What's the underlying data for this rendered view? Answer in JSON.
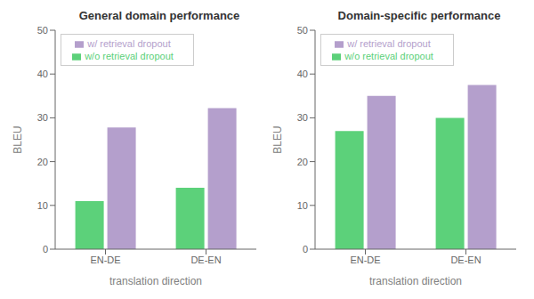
{
  "chart_data": [
    {
      "type": "bar",
      "title": "General domain performance",
      "categories": [
        "EN-DE",
        "DE-EN"
      ],
      "x_label": "translation direction",
      "y_label": "BLEU",
      "series": [
        {
          "name": "w/o retrieval dropout",
          "color": "#5cd17a",
          "values": [
            11.0,
            14.0
          ]
        },
        {
          "name": "w/ retrieval dropout",
          "color": "#b49fcc",
          "values": [
            27.8,
            32.2
          ]
        }
      ],
      "ylim": [
        0,
        50
      ],
      "yticks": [
        0,
        10,
        20,
        30,
        40,
        50
      ],
      "grid": false,
      "legend": "upper left"
    },
    {
      "type": "bar",
      "title": "Domain-specific performance",
      "categories": [
        "EN-DE",
        "DE-EN"
      ],
      "x_label": "translation direction",
      "y_label": "BLEU",
      "series": [
        {
          "name": "w/o retrieval dropout",
          "color": "#5cd17a",
          "values": [
            27.0,
            30.0
          ]
        },
        {
          "name": "w/ retrieval dropout",
          "color": "#b49fcc",
          "values": [
            35.0,
            37.5
          ]
        }
      ],
      "ylim": [
        0,
        50
      ],
      "yticks": [
        0,
        10,
        20,
        30,
        40,
        50
      ],
      "grid": false,
      "legend": "upper left"
    }
  ]
}
